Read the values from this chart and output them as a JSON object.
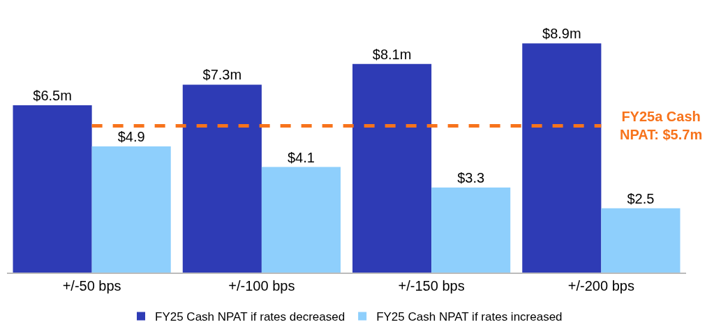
{
  "chart_data": {
    "type": "bar",
    "categories": [
      "+/-50 bps",
      "+/-100 bps",
      "+/-150 bps",
      "+/-200 bps"
    ],
    "series": [
      {
        "name": "FY25 Cash NPAT if rates decreased",
        "color": "#2e3bb5",
        "values": [
          6.5,
          7.3,
          8.1,
          8.9
        ],
        "value_labels": [
          "$6.5m",
          "$7.3m",
          "$8.1m",
          "$8.9m"
        ]
      },
      {
        "name": "FY25 Cash NPAT if rates increased",
        "color": "#8ecffc",
        "values": [
          4.9,
          4.1,
          3.3,
          2.5
        ],
        "value_labels": [
          "$4.9",
          "$4.1",
          "$3.3",
          "$2.5"
        ]
      }
    ],
    "ref_lines": [
      {
        "axis": "y",
        "value": 5.7,
        "label": "FY25a Cash NPAT: $5.7m",
        "color": "#f7731c",
        "line_style": "dashed"
      }
    ],
    "tick_labels": "x",
    "grid": false,
    "legend": "bottom"
  }
}
